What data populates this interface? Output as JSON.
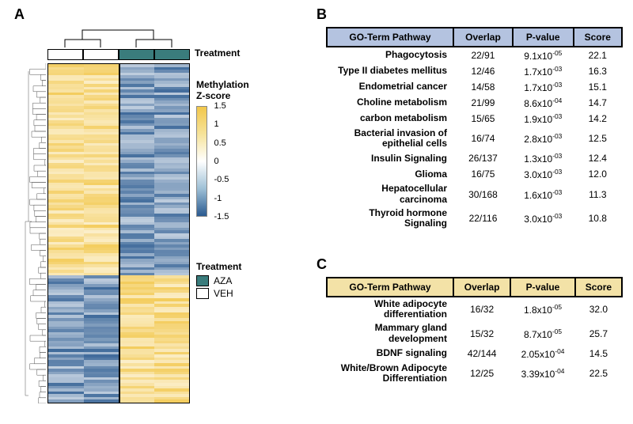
{
  "labels": {
    "A": "A",
    "B": "B",
    "C": "C"
  },
  "panelA": {
    "treatment_label": "Treatment",
    "col_annotation": [
      "VEH",
      "VEH",
      "AZA",
      "AZA"
    ],
    "col_colors": {
      "VEH": "#ffffff",
      "AZA": "#3a7c7c"
    },
    "heatmap": {
      "rows": 120,
      "cols": 4,
      "palette_low": "#2a5a90",
      "palette_mid": "#ffffff",
      "palette_high": "#f2c74b",
      "zlim": [
        -1.5,
        1.5
      ],
      "col_pattern_means": [
        0.9,
        0.9,
        -0.9,
        -0.9
      ],
      "block_breaks": [
        0.62,
        1.0
      ],
      "block_sign": [
        1,
        -1
      ]
    },
    "colorbar": {
      "title_line1": "Methylation",
      "title_line2": "Z-score",
      "ticks": [
        1.5,
        1,
        0.5,
        0,
        -0.5,
        -1,
        -1.5
      ]
    },
    "legend": {
      "title": "Treatment",
      "items": [
        {
          "label": "AZA",
          "color": "#3a7c7c"
        },
        {
          "label": "VEH",
          "color": "#ffffff"
        }
      ]
    }
  },
  "tableB": {
    "header_bg": "#b4c3e0",
    "columns": [
      "GO-Term Pathway",
      "Overlap",
      "P-value",
      "Score"
    ],
    "rows": [
      {
        "pathway": "Phagocytosis",
        "overlap": "22/91",
        "p_mantissa": "9.1",
        "p_exp": "-05",
        "score": "22.1"
      },
      {
        "pathway": "Type II diabetes mellitus",
        "overlap": "12/46",
        "p_mantissa": "1.7",
        "p_exp": "-03",
        "score": "16.3"
      },
      {
        "pathway": "Endometrial cancer",
        "overlap": "14/58",
        "p_mantissa": "1.7",
        "p_exp": "-03",
        "score": "15.1"
      },
      {
        "pathway": "Choline metabolism",
        "overlap": "21/99",
        "p_mantissa": "8.6",
        "p_exp": "-04",
        "score": "14.7"
      },
      {
        "pathway": "carbon metabolism",
        "overlap": "15/65",
        "p_mantissa": "1.9",
        "p_exp": "-03",
        "score": "14.2"
      },
      {
        "pathway": "Bacterial invasion of epithelial cells",
        "overlap": "16/74",
        "p_mantissa": "2.8",
        "p_exp": "-03",
        "score": "12.5"
      },
      {
        "pathway": "Insulin Signaling",
        "overlap": "26/137",
        "p_mantissa": "1.3",
        "p_exp": "-03",
        "score": "12.4"
      },
      {
        "pathway": "Glioma",
        "overlap": "16/75",
        "p_mantissa": "3.0",
        "p_exp": "-03",
        "score": "12.0"
      },
      {
        "pathway": "Hepatocellular carcinoma",
        "overlap": "30/168",
        "p_mantissa": "1.6",
        "p_exp": "-03",
        "score": "11.3"
      },
      {
        "pathway": "Thyroid hormone Signaling",
        "overlap": "22/116",
        "p_mantissa": "3.0",
        "p_exp": "-03",
        "score": "10.8"
      }
    ]
  },
  "tableC": {
    "header_bg": "#f3e2a7",
    "columns": [
      "GO-Term Pathway",
      "Overlap",
      "P-value",
      "Score"
    ],
    "rows": [
      {
        "pathway": "White adipocyte differentiation",
        "overlap": "16/32",
        "p_mantissa": "1.8",
        "p_exp": "-05",
        "score": "32.0"
      },
      {
        "pathway": "Mammary gland development",
        "overlap": "15/32",
        "p_mantissa": "8.7",
        "p_exp": "-05",
        "score": "25.7"
      },
      {
        "pathway": "BDNF signaling",
        "overlap": "42/144",
        "p_mantissa": "2.05",
        "p_exp": "-04",
        "score": "14.5"
      },
      {
        "pathway": "White/Brown Adipocyte Differentiation",
        "overlap": "12/25",
        "p_mantissa": "3.39",
        "p_exp": "-04",
        "score": "22.5"
      }
    ]
  }
}
